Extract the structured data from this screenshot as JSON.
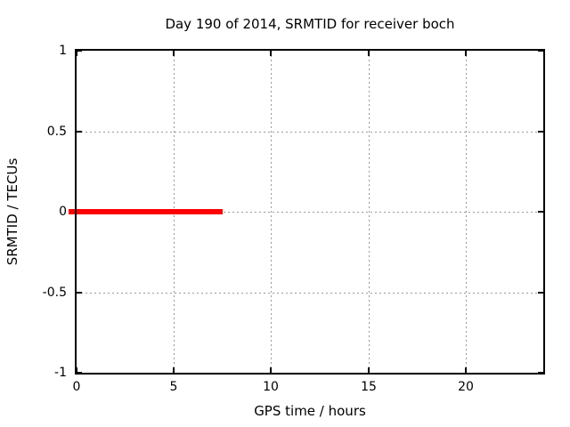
{
  "chart_data": {
    "type": "line",
    "title": "Day 190 of 2014, SRMTID for receiver boch",
    "xlabel": "GPS time / hours",
    "ylabel": "SRMTID / TECUs",
    "xlim": [
      0,
      24
    ],
    "ylim": [
      -1,
      1
    ],
    "xticks": [
      0,
      5,
      10,
      15,
      20
    ],
    "yticks": [
      -1,
      -0.5,
      0,
      0.5,
      1
    ],
    "grid": "dotted",
    "legend_position": "none",
    "series": [
      {
        "name": "SRMTID",
        "color": "#ff0000",
        "x": [
          0,
          7.5
        ],
        "y": [
          0,
          0
        ],
        "note": "constant value 0 from 0 to ~7.5 hours, thick line"
      }
    ]
  },
  "colors": {
    "background": "#ffffff",
    "axis": "#000000",
    "grid": "#999999",
    "text": "#000000",
    "line": "#ff0000"
  }
}
